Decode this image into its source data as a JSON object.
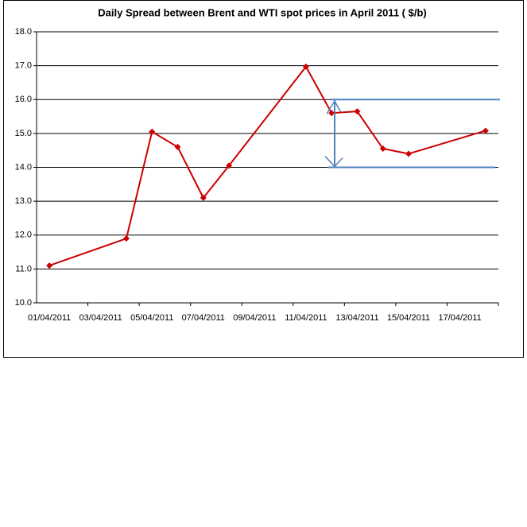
{
  "chart_data": {
    "type": "line",
    "title": "Daily Spread between Brent and WTI spot prices in April  2011 ( $/b)",
    "categories": [
      "01/04/2011",
      null,
      "03/04/2011",
      null,
      "05/04/2011",
      null,
      "07/04/2011",
      null,
      "09/04/2011",
      null,
      "11/04/2011",
      null,
      "13/04/2011",
      null,
      "15/04/2011",
      null,
      "17/04/2011",
      null
    ],
    "series": [
      {
        "color": "#cc0000",
        "values": [
          11.1,
          null,
          null,
          11.9,
          15.05,
          14.6,
          13.1,
          14.05,
          null,
          null,
          16.97,
          15.6,
          15.65,
          14.55,
          14.4,
          null,
          null,
          15.08
        ]
      }
    ],
    "connect_gaps": true,
    "ylim": [
      10,
      18
    ],
    "yticks": [
      {
        "value": 10,
        "label": "10.0"
      },
      {
        "value": 11,
        "label": "11.0"
      },
      {
        "value": 12,
        "label": "12.0"
      },
      {
        "value": 13,
        "label": "13.0"
      },
      {
        "value": 14,
        "label": "14.0"
      },
      {
        "value": 15,
        "label": "15.0"
      },
      {
        "value": 16,
        "label": "16.0"
      },
      {
        "value": 17,
        "label": "17.0"
      },
      {
        "value": 18,
        "label": "18.0"
      }
    ],
    "grid": true,
    "bracket": {
      "range": [
        14,
        16
      ],
      "color": "#4f81bd"
    }
  }
}
